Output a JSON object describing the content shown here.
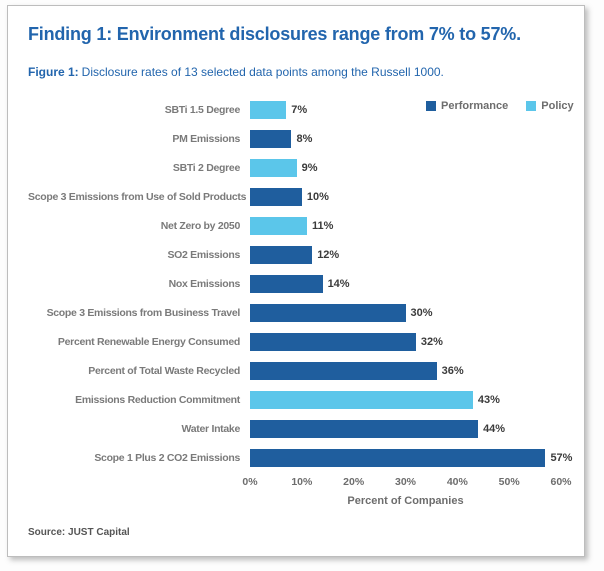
{
  "card": {
    "title": "Finding 1: Environment disclosures range from 7% to 57%.",
    "figure_label": "Figure 1:",
    "figure_caption": "Disclosure rates of 13 selected data points among the Russell 1000.",
    "source": "Source: JUST Capital"
  },
  "legend": [
    {
      "label": "Performance",
      "color": "#1f5e9e"
    },
    {
      "label": "Policy",
      "color": "#5bc6ea"
    }
  ],
  "colors": {
    "performance_bar": "#1f5e9e",
    "policy_bar": "#5bc6ea",
    "title_text": "#2265ad",
    "category_text": "#7a7a7a",
    "value_text": "#3b3b3b",
    "axis_text": "#6d6d6d",
    "card_border": "#bdbdbd"
  },
  "chart_data": {
    "type": "bar",
    "orientation": "horizontal",
    "title": "Figure 1: Disclosure rates of 13 selected data points among the Russell 1000.",
    "xlabel": "Percent of Companies",
    "xlim": [
      0,
      60
    ],
    "x_ticks": [
      "0%",
      "10%",
      "20%",
      "30%",
      "40%",
      "50%",
      "60%"
    ],
    "grid": false,
    "legend_entries": [
      "Performance",
      "Policy"
    ],
    "legend_position": "top-right",
    "categories": [
      "SBTi 1.5 Degree",
      "PM Emissions",
      "SBTi 2 Degree",
      "Scope 3 Emissions from Use of Sold Products",
      "Net Zero by 2050",
      "SO2 Emissions",
      "Nox Emissions",
      "Scope 3 Emissions from Business Travel",
      "Percent Renewable Energy Consumed",
      "Percent of Total Waste Recycled",
      "Emissions Reduction Commitment",
      "Water Intake",
      "Scope 1 Plus 2 CO2 Emissions"
    ],
    "values": [
      7,
      8,
      9,
      10,
      11,
      12,
      14,
      30,
      32,
      36,
      43,
      44,
      57
    ],
    "series_assignment": [
      "Policy",
      "Performance",
      "Policy",
      "Performance",
      "Policy",
      "Performance",
      "Performance",
      "Performance",
      "Performance",
      "Performance",
      "Policy",
      "Performance",
      "Performance"
    ],
    "value_label_suffix": "%"
  }
}
